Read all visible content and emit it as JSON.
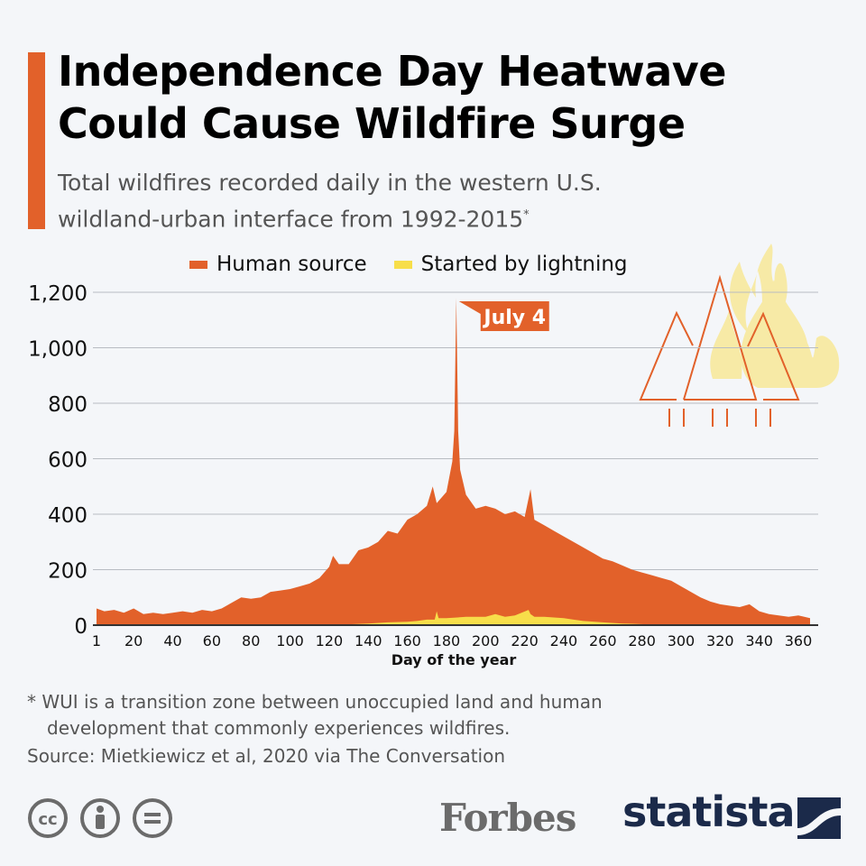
{
  "header": {
    "title_line1": "Independence Day Heatwave",
    "title_line2": "Could Cause Wildfire Surge",
    "subtitle_line1": "Total wildfires recorded daily in the western U.S.",
    "subtitle_line2": "wildland-urban interface from 1992-2015",
    "subtitle_marker": "*"
  },
  "colors": {
    "human": "#e2612a",
    "lightning": "#f7de4a",
    "accent": "#e2612a",
    "background": "#f4f6f9",
    "flame": "#f7eaa6"
  },
  "chart_data": {
    "type": "area",
    "xlabel": "Day of the year",
    "ylabel": "",
    "xlim": [
      1,
      366
    ],
    "ylim": [
      0,
      1200
    ],
    "grid": true,
    "legend_placement": "top",
    "x_ticks": [
      "1",
      "20",
      "40",
      "60",
      "80",
      "100",
      "120",
      "140",
      "160",
      "180",
      "200",
      "220",
      "240",
      "260",
      "280",
      "300",
      "320",
      "340",
      "360"
    ],
    "y_ticks": [
      "0",
      "200",
      "400",
      "600",
      "800",
      "1,000",
      "1,200"
    ],
    "annotation": {
      "label": "July 4",
      "x": 185
    },
    "series": [
      {
        "name": "Human source",
        "x": [
          1,
          5,
          10,
          15,
          20,
          25,
          30,
          35,
          40,
          45,
          50,
          55,
          60,
          65,
          70,
          75,
          80,
          85,
          90,
          95,
          100,
          105,
          110,
          115,
          120,
          122,
          125,
          130,
          135,
          140,
          145,
          150,
          155,
          160,
          165,
          170,
          173,
          175,
          180,
          183,
          184,
          185,
          186,
          187,
          190,
          195,
          200,
          205,
          210,
          215,
          220,
          223,
          225,
          230,
          235,
          240,
          245,
          250,
          255,
          260,
          265,
          270,
          275,
          280,
          285,
          290,
          295,
          300,
          305,
          310,
          315,
          320,
          325,
          330,
          335,
          340,
          345,
          350,
          355,
          360,
          366
        ],
        "y": [
          60,
          50,
          55,
          45,
          60,
          40,
          45,
          40,
          45,
          50,
          45,
          55,
          50,
          60,
          80,
          100,
          95,
          100,
          120,
          125,
          130,
          140,
          150,
          170,
          210,
          250,
          220,
          220,
          270,
          280,
          300,
          340,
          330,
          380,
          400,
          430,
          500,
          440,
          480,
          590,
          700,
          1180,
          700,
          560,
          470,
          420,
          430,
          420,
          400,
          410,
          390,
          490,
          380,
          360,
          340,
          320,
          300,
          280,
          260,
          240,
          230,
          215,
          200,
          190,
          180,
          170,
          160,
          140,
          120,
          100,
          85,
          75,
          70,
          65,
          75,
          50,
          40,
          35,
          30,
          35,
          25
        ]
      },
      {
        "name": "Started by lightning",
        "x": [
          1,
          120,
          130,
          140,
          150,
          160,
          165,
          170,
          174,
          175,
          176,
          180,
          190,
          200,
          205,
          210,
          215,
          222,
          223,
          225,
          230,
          240,
          245,
          250,
          260,
          270,
          275,
          285,
          290,
          366
        ],
        "y": [
          0,
          0,
          3,
          6,
          10,
          12,
          15,
          20,
          20,
          50,
          25,
          25,
          30,
          30,
          40,
          30,
          35,
          55,
          40,
          30,
          30,
          25,
          20,
          15,
          10,
          6,
          5,
          2,
          0,
          0
        ]
      }
    ]
  },
  "footnote": {
    "line1": "* WUI is a transition zone between unoccupied land and human",
    "line2": "development that commonly experiences wildfires."
  },
  "source": "Source: Mietkiewicz et al, 2020 via The Conversation",
  "logos": {
    "forbes": "Forbes",
    "statista": "statista",
    "license_icons": [
      "cc-icon",
      "attribution-icon",
      "no-derivatives-icon"
    ]
  }
}
